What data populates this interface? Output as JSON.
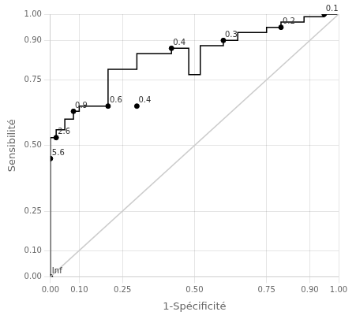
{
  "chart_data": {
    "type": "line",
    "xlabel": "1-Spécificité",
    "ylabel": "Sensibilité",
    "series": [
      {
        "type": "line",
        "color": "#cccccc",
        "x": [
          0.0,
          1.0
        ],
        "values": [
          0.0,
          1.0
        ]
      },
      {
        "type": "line",
        "color": "#000000",
        "x": [
          0.0,
          0.0,
          0.0,
          0.0,
          0.02,
          0.02,
          0.05,
          0.05,
          0.08,
          0.08,
          0.1,
          0.1,
          0.2,
          0.2,
          0.3,
          0.3,
          0.42,
          0.42,
          0.48,
          0.48,
          0.52,
          0.52,
          0.6,
          0.6,
          0.65,
          0.65,
          0.75,
          0.75,
          0.8,
          0.8,
          0.88,
          0.88,
          0.95,
          0.95,
          1.0
        ],
        "values": [
          0.0,
          0.45,
          0.5,
          0.53,
          0.53,
          0.56,
          0.56,
          0.6,
          0.6,
          0.63,
          0.63,
          0.65,
          0.65,
          0.79,
          0.79,
          0.85,
          0.85,
          0.87,
          0.87,
          0.77,
          0.77,
          0.88,
          0.88,
          0.9,
          0.9,
          0.93,
          0.93,
          0.95,
          0.95,
          0.97,
          0.97,
          0.99,
          0.99,
          1.0,
          1.0
        ]
      },
      {
        "type": "scatter",
        "color": "#000000",
        "marker": "circle",
        "x": [
          0.0,
          0.0,
          0.02,
          0.08,
          0.2,
          0.3,
          0.42,
          0.6,
          0.8,
          0.95
        ],
        "values": [
          0.0,
          0.45,
          0.53,
          0.63,
          0.65,
          0.65,
          0.87,
          0.9,
          0.95,
          1.0
        ]
      }
    ],
    "annotations": [
      {
        "text": "Inf",
        "x": 0.0,
        "y": 0.0
      },
      {
        "text": "5.6",
        "x": 0.0,
        "y": 0.45
      },
      {
        "text": "2.6",
        "x": 0.02,
        "y": 0.53
      },
      {
        "text": "0.9",
        "x": 0.08,
        "y": 0.63
      },
      {
        "text": "0.6",
        "x": 0.2,
        "y": 0.65
      },
      {
        "text": "0.4",
        "x": 0.3,
        "y": 0.65
      },
      {
        "text": "0.4",
        "x": 0.42,
        "y": 0.87
      },
      {
        "text": "0.3",
        "x": 0.6,
        "y": 0.9
      },
      {
        "text": "0.2",
        "x": 0.8,
        "y": 0.95
      },
      {
        "text": "0.1",
        "x": 0.95,
        "y": 1.0
      }
    ],
    "xlim": [
      0.0,
      1.0
    ],
    "ylim": [
      0.0,
      1.0
    ],
    "xticks": [
      {
        "value": 0.0,
        "label": "0.00"
      },
      {
        "value": 0.1,
        "label": "0.10"
      },
      {
        "value": 0.25,
        "label": "0.25"
      },
      {
        "value": 0.5,
        "label": "0.50"
      },
      {
        "value": 0.75,
        "label": "0.75"
      },
      {
        "value": 0.9,
        "label": "0.90"
      },
      {
        "value": 1.0,
        "label": "1.00"
      }
    ],
    "yticks": [
      {
        "value": 0.0,
        "label": "0.00"
      },
      {
        "value": 0.1,
        "label": "0.10"
      },
      {
        "value": 0.25,
        "label": "0.25"
      },
      {
        "value": 0.5,
        "label": "0.50"
      },
      {
        "value": 0.75,
        "label": "0.75"
      },
      {
        "value": 0.9,
        "label": "0.90"
      },
      {
        "value": 1.0,
        "label": "1.00"
      }
    ],
    "grid": true
  }
}
